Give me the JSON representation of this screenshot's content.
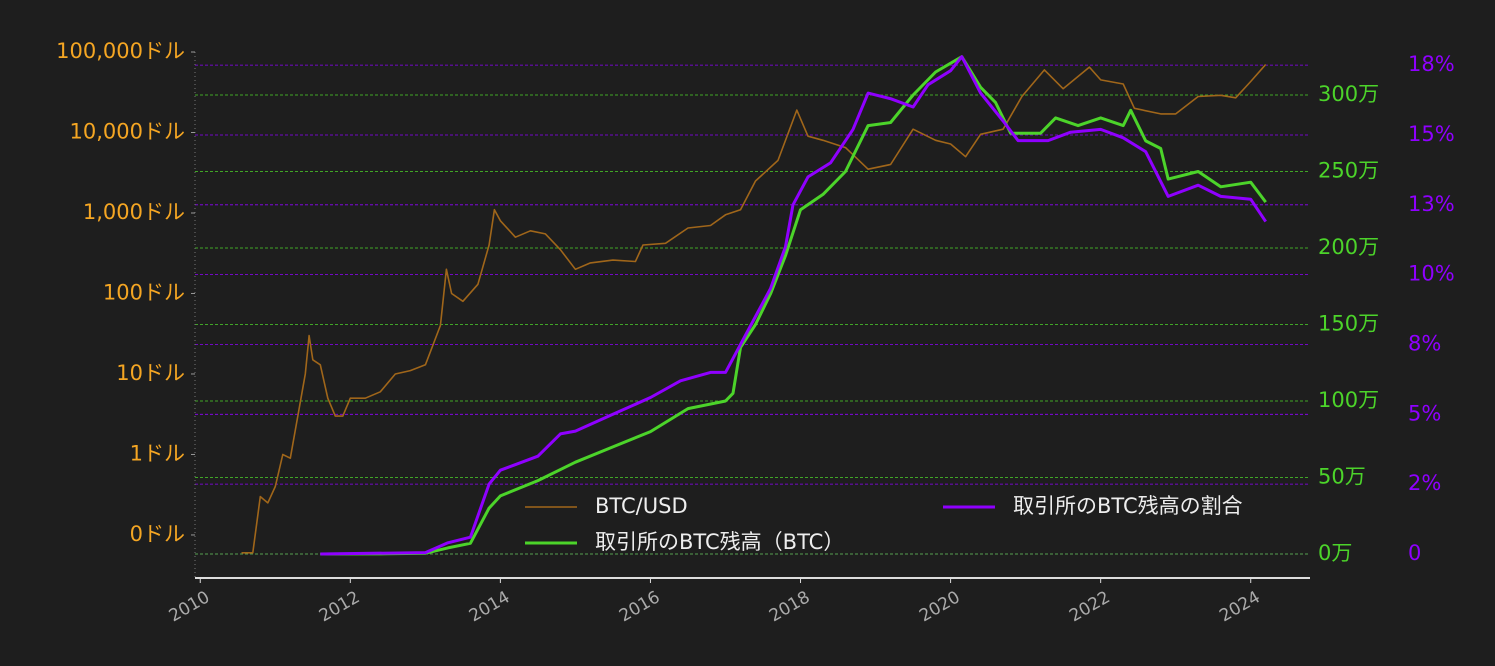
{
  "chart_data": {
    "type": "line",
    "xlim": [
      2009.93,
      2024.79
    ],
    "xticks": [
      2010,
      2012,
      2014,
      2016,
      2018,
      2020,
      2022,
      2024
    ],
    "yscale": "log",
    "ylim": [
      0.0292,
      100000
    ],
    "yticks": [
      {
        "value": 0.1,
        "label": "0ドル"
      },
      {
        "value": 1,
        "label": "1ドル"
      },
      {
        "value": 10,
        "label": "10ドル"
      },
      {
        "value": 100,
        "label": "100ドル"
      },
      {
        "value": 1000,
        "label": "1,000ドル"
      },
      {
        "value": 10000,
        "label": "10,000ドル"
      },
      {
        "value": 100000,
        "label": "100,000ドル"
      }
    ],
    "y2lim": [
      -156900,
      3281000
    ],
    "y2ticks": [
      {
        "value": 0,
        "label": "0万"
      },
      {
        "value": 500000,
        "label": "50万"
      },
      {
        "value": 1000000,
        "label": "100万"
      },
      {
        "value": 1500000,
        "label": "150万"
      },
      {
        "value": 2000000,
        "label": "200万"
      },
      {
        "value": 2500000,
        "label": "250万"
      },
      {
        "value": 3000000,
        "label": "300万"
      }
    ],
    "y3lim": [
      -0.86,
      17.97
    ],
    "y3ticks": [
      0,
      {
        "value": 2.5,
        "label": "2%"
      },
      {
        "value": 5,
        "label": "5%"
      },
      {
        "value": 7.5,
        "label": "8%"
      },
      {
        "value": 10,
        "label": "10%"
      },
      {
        "value": 12.5,
        "label": "13%"
      },
      {
        "value": 15,
        "label": "15%"
      },
      {
        "value": 17.5,
        "label": "18%"
      }
    ],
    "y3_tick_suffix_in_labels": true,
    "legend": "lower center",
    "series": [
      {
        "name": "BTC/USD",
        "color": "#a0661a",
        "axis": "y",
        "x": [
          2010.55,
          2010.7,
          2010.8,
          2010.9,
          2011.0,
          2011.1,
          2011.2,
          2011.3,
          2011.4,
          2011.45,
          2011.5,
          2011.6,
          2011.7,
          2011.8,
          2011.9,
          2012.0,
          2012.2,
          2012.4,
          2012.6,
          2012.8,
          2013.0,
          2013.2,
          2013.28,
          2013.35,
          2013.5,
          2013.7,
          2013.85,
          2013.92,
          2014.0,
          2014.2,
          2014.4,
          2014.6,
          2014.8,
          2015.0,
          2015.2,
          2015.5,
          2015.8,
          2015.9,
          2016.2,
          2016.5,
          2016.8,
          2017.0,
          2017.2,
          2017.4,
          2017.7,
          2017.95,
          2018.1,
          2018.3,
          2018.6,
          2018.9,
          2019.2,
          2019.5,
          2019.8,
          2020.0,
          2020.2,
          2020.4,
          2020.7,
          2020.95,
          2021.25,
          2021.5,
          2021.85,
          2022.0,
          2022.3,
          2022.45,
          2022.8,
          2023.0,
          2023.3,
          2023.6,
          2023.8,
          2024.0,
          2024.15,
          2024.2
        ],
        "values": [
          0.06,
          0.06,
          0.3,
          0.25,
          0.4,
          1,
          0.9,
          3,
          10,
          30,
          15,
          13,
          5,
          3,
          3,
          5,
          5,
          6,
          10,
          11,
          13,
          40,
          200,
          100,
          80,
          130,
          400,
          1100,
          800,
          500,
          600,
          550,
          350,
          200,
          240,
          260,
          250,
          400,
          420,
          650,
          700,
          950,
          1100,
          2500,
          4500,
          19000,
          9000,
          8000,
          6500,
          3500,
          4000,
          11000,
          8000,
          7200,
          5000,
          9500,
          11000,
          28000,
          60000,
          35000,
          65000,
          45000,
          40000,
          20000,
          17000,
          17000,
          28000,
          29000,
          27000,
          43000,
          62000,
          70000
        ]
      },
      {
        "name": "取引所のBTC残高（BTC）",
        "color": "#4cd42a",
        "axis": "y2",
        "x": [
          2011.6,
          2012.5,
          2013.0,
          2013.3,
          2013.6,
          2013.85,
          2014.0,
          2014.5,
          2015.0,
          2015.5,
          2016.0,
          2016.5,
          2017.0,
          2017.1,
          2017.2,
          2017.4,
          2017.6,
          2017.8,
          2018.0,
          2018.3,
          2018.6,
          2018.9,
          2019.2,
          2019.5,
          2019.8,
          2020.15,
          2020.4,
          2020.6,
          2020.8,
          2021.2,
          2021.4,
          2021.7,
          2022.0,
          2022.3,
          2022.4,
          2022.6,
          2022.8,
          2022.9,
          2023.3,
          2023.6,
          2024.0,
          2024.2
        ],
        "values": [
          0,
          1000,
          5000,
          40000,
          70000,
          300000,
          380000,
          480000,
          600000,
          700000,
          800000,
          950000,
          1000000,
          1050000,
          1350000,
          1500000,
          1700000,
          1950000,
          2250000,
          2350000,
          2500000,
          2800000,
          2820000,
          3000000,
          3150000,
          3250000,
          3050000,
          2950000,
          2750000,
          2750000,
          2850000,
          2800000,
          2850000,
          2800000,
          2900000,
          2700000,
          2650000,
          2450000,
          2500000,
          2400000,
          2430000,
          2300000
        ]
      },
      {
        "name": "取引所のBTC残高の割合",
        "color": "#8f00ff",
        "axis": "y3",
        "x": [
          2011.6,
          2013.0,
          2013.3,
          2013.6,
          2013.85,
          2014.0,
          2014.5,
          2014.8,
          2015.0,
          2015.5,
          2016.0,
          2016.4,
          2016.8,
          2017.0,
          2017.2,
          2017.4,
          2017.6,
          2017.8,
          2017.9,
          2018.1,
          2018.4,
          2018.7,
          2018.9,
          2019.2,
          2019.5,
          2019.7,
          2020.0,
          2020.15,
          2020.4,
          2020.7,
          2020.9,
          2021.3,
          2021.6,
          2022.0,
          2022.3,
          2022.6,
          2022.9,
          2023.3,
          2023.6,
          2024.0,
          2024.2
        ],
        "values": [
          0,
          0.05,
          0.4,
          0.6,
          2.5,
          3.0,
          3.5,
          4.3,
          4.4,
          5.0,
          5.6,
          6.2,
          6.5,
          6.5,
          7.5,
          8.5,
          9.5,
          11.0,
          12.5,
          13.5,
          14.0,
          15.2,
          16.5,
          16.3,
          16.0,
          16.8,
          17.3,
          17.8,
          16.5,
          15.5,
          14.8,
          14.8,
          15.1,
          15.2,
          14.9,
          14.4,
          12.8,
          13.2,
          12.8,
          12.7,
          11.9
        ]
      }
    ]
  }
}
